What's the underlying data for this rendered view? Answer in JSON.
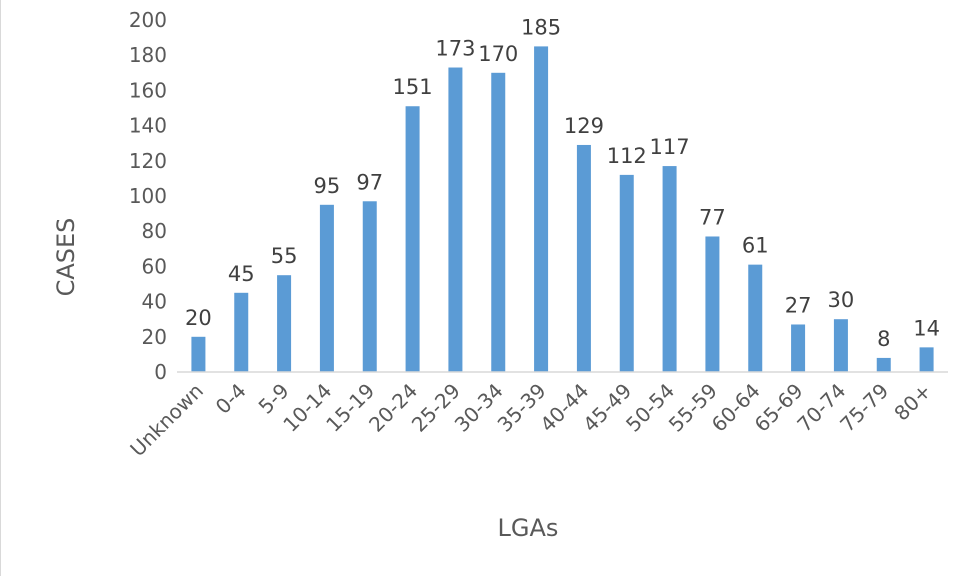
{
  "chart_data": {
    "type": "bar",
    "categories": [
      "Unknown",
      "0-4",
      "5-9",
      "10-14",
      "15-19",
      "20-24",
      "25-29",
      "30-34",
      "35-39",
      "40-44",
      "45-49",
      "50-54",
      "55-59",
      "60-64",
      "65-69",
      "70-74",
      "75-79",
      "80+"
    ],
    "series": [
      {
        "values": [
          20,
          45,
          55,
          95,
          97,
          151,
          173,
          170,
          185,
          129,
          112,
          117,
          77,
          61,
          27,
          30,
          8,
          14
        ]
      }
    ],
    "data_labels": [
      "20",
      "45",
      "55",
      "95",
      "97",
      "151",
      "173",
      "170",
      "185",
      "129",
      "112",
      "117",
      "77",
      "61",
      "27",
      "30",
      "8",
      "14"
    ],
    "y_ticks": [
      "0",
      "20",
      "40",
      "60",
      "80",
      "100",
      "120",
      "140",
      "160",
      "180",
      "200"
    ],
    "title": "",
    "xlabel": "LGAs",
    "ylabel": "CASES",
    "ylim": [
      0,
      200
    ],
    "grid": false,
    "legend": "none",
    "bar_color": "#5b9bd5"
  }
}
